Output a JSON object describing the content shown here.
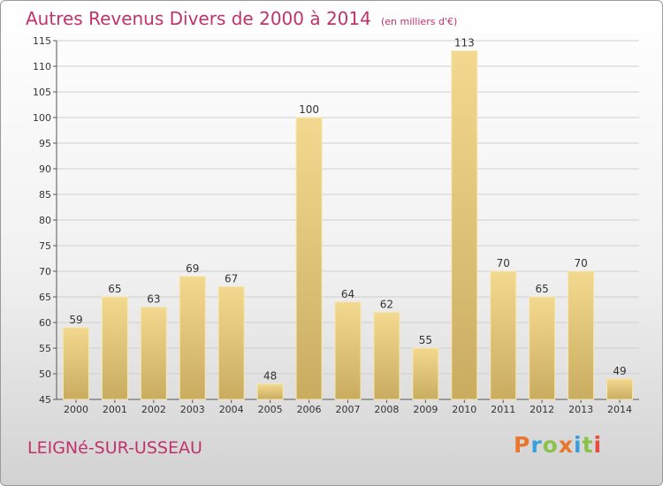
{
  "chart_data": {
    "type": "bar",
    "title": "Autres Revenus Divers de 2000 à 2014",
    "subtitle": "(en milliers d'€)",
    "categories": [
      "2000",
      "2001",
      "2002",
      "2003",
      "2004",
      "2005",
      "2006",
      "2007",
      "2008",
      "2009",
      "2010",
      "2011",
      "2012",
      "2013",
      "2014"
    ],
    "values": [
      59,
      65,
      63,
      69,
      67,
      48,
      100,
      64,
      62,
      55,
      113,
      70,
      65,
      70,
      49
    ],
    "ylim": [
      45,
      115
    ],
    "yticks": [
      45,
      50,
      55,
      60,
      65,
      70,
      75,
      80,
      85,
      90,
      95,
      100,
      105,
      110,
      115
    ],
    "grid": true,
    "bar_color": "#e6c97e"
  },
  "footer": {
    "town": "LEIGNé-SUR-USSEAU",
    "brand": "Proxiti",
    "brand_colors": [
      "#e8762c",
      "#3aa0dc",
      "#8bc34a",
      "#e8762c",
      "#3aa0dc",
      "#8bc34a",
      "#e84c3d"
    ]
  }
}
